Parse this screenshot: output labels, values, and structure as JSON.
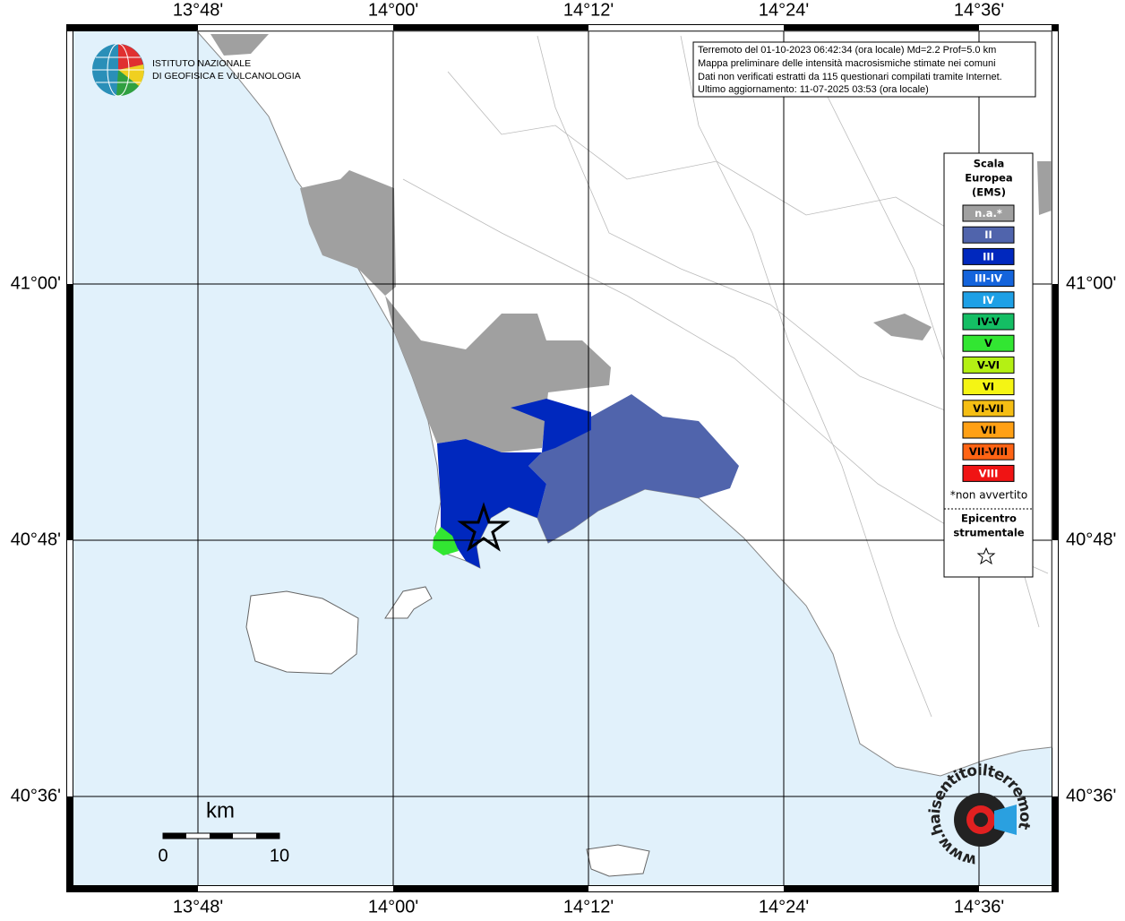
{
  "logo": {
    "lines": [
      "ISTITUTO NAZIONALE",
      "DI GEOFISICA E VULCANOLOGIA"
    ]
  },
  "info": {
    "lines": [
      "Terremoto del 01-10-2023 06:42:34 (ora locale) Md=2.2 Prof=5.0 km",
      "Mappa preliminare delle intensità macrosismiche stimate nei comuni",
      "Dati non verificati estratti da 115 questionari compilati tramite Internet.",
      "Ultimo aggiornamento: 11-07-2025 03:53 (ora locale)"
    ]
  },
  "grid": {
    "lon_labels": [
      "13°48'",
      "14°00'",
      "14°12'",
      "14°24'",
      "14°36'"
    ],
    "lat_labels": [
      "41°00'",
      "40°48'",
      "40°36'"
    ]
  },
  "legend": {
    "title_lines": [
      "Scala",
      "Europea",
      "(EMS)"
    ],
    "items": [
      {
        "label": "n.a.*",
        "color": "#a0a0a0",
        "text_color": "#ffffff"
      },
      {
        "label": "II",
        "color": "#5064ac",
        "text_color": "#ffffff"
      },
      {
        "label": "III",
        "color": "#0028be",
        "text_color": "#ffffff"
      },
      {
        "label": "III-IV",
        "color": "#1464dc",
        "text_color": "#ffffff"
      },
      {
        "label": "IV",
        "color": "#1ea0e6",
        "text_color": "#ffffff"
      },
      {
        "label": "IV-V",
        "color": "#14be64",
        "text_color": "#000000"
      },
      {
        "label": "V",
        "color": "#32e632",
        "text_color": "#000000"
      },
      {
        "label": "V-VI",
        "color": "#b4f014",
        "text_color": "#000000"
      },
      {
        "label": "VI",
        "color": "#f5f514",
        "text_color": "#000000"
      },
      {
        "label": "VI-VII",
        "color": "#f5be14",
        "text_color": "#000000"
      },
      {
        "label": "VII",
        "color": "#ffa014",
        "text_color": "#000000"
      },
      {
        "label": "VII-VIII",
        "color": "#ff6414",
        "text_color": "#000000"
      },
      {
        "label": "VIII",
        "color": "#f01414",
        "text_color": "#ffffff"
      }
    ],
    "note": "*non avvertito",
    "epicenter_lines": [
      "Epicentro",
      "strumentale"
    ]
  },
  "scale": {
    "unit": "km",
    "labels": [
      "0",
      "10"
    ]
  },
  "watermark": "www.haisentitoilterremoto.it"
}
